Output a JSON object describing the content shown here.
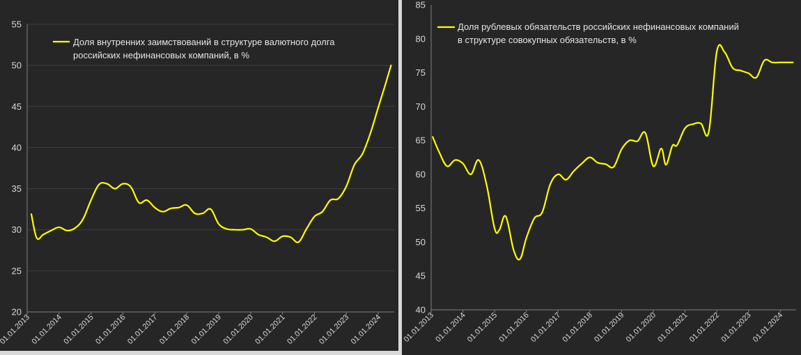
{
  "colors": {
    "background": "#262626",
    "line": "#ffff00",
    "text": "#d9d9d9",
    "grid": "#3f3f3f"
  },
  "chart_data": [
    {
      "type": "line",
      "legend": {
        "line1": "Доля внутренних заимствований в структуре валютного долга",
        "line2": "российских нефинансовых компаний, в %",
        "placement": "top"
      },
      "ylim": [
        20,
        55
      ],
      "yticks": [
        20,
        25,
        30,
        35,
        40,
        45,
        50,
        55
      ],
      "xlim": [
        2013.0,
        2024.5
      ],
      "xticks": [
        "01.01.2013",
        "01.01.2014",
        "01.01.2015",
        "01.01.2016",
        "01.01.2017",
        "01.01.2018",
        "01.01.2019",
        "01.01.2020",
        "01.01.2021",
        "01.01.2022",
        "01.01.2023",
        "01.01.2024"
      ],
      "grid": true,
      "series": [
        {
          "x": [
            2013.13,
            2013.3,
            2013.5,
            2013.75,
            2014.0,
            2014.25,
            2014.5,
            2014.75,
            2015.0,
            2015.25,
            2015.5,
            2015.75,
            2016.0,
            2016.25,
            2016.5,
            2016.75,
            2017.0,
            2017.25,
            2017.5,
            2017.75,
            2018.0,
            2018.25,
            2018.5,
            2018.75,
            2019.0,
            2019.25,
            2019.5,
            2019.75,
            2020.0,
            2020.25,
            2020.5,
            2020.75,
            2021.0,
            2021.25,
            2021.5,
            2021.75,
            2022.0,
            2022.25,
            2022.5,
            2022.75,
            2023.0,
            2023.25,
            2023.5,
            2023.75,
            2024.0,
            2024.2,
            2024.4
          ],
          "values": [
            31.9,
            29.0,
            29.4,
            29.9,
            30.3,
            29.9,
            30.2,
            31.3,
            33.6,
            35.5,
            35.6,
            35.0,
            35.6,
            35.2,
            33.3,
            33.6,
            32.7,
            32.2,
            32.6,
            32.7,
            33.0,
            32.0,
            32.0,
            32.5,
            30.7,
            30.1,
            30.0,
            30.0,
            30.1,
            29.4,
            29.1,
            28.6,
            29.2,
            29.1,
            28.5,
            30.1,
            31.6,
            32.2,
            33.6,
            33.8,
            35.3,
            37.9,
            39.2,
            41.7,
            44.9,
            47.4,
            50.0
          ]
        }
      ]
    },
    {
      "type": "line",
      "legend": {
        "line1": "Доля рублевых обязательств российских нефинансовых компаний",
        "line2": "в структуре совокупных обязательств, в %",
        "placement": "top"
      },
      "ylim": [
        40,
        85
      ],
      "yticks": [
        40,
        45,
        50,
        55,
        60,
        65,
        70,
        75,
        80,
        85
      ],
      "xlim": [
        2013.0,
        2024.5
      ],
      "xticks": [
        "01.01.2013",
        "01.01.2014",
        "01.01.2015",
        "01.01.2016",
        "01.01.2017",
        "01.01.2018",
        "01.01.2019",
        "01.01.2020",
        "01.01.2021",
        "01.01.2022",
        "01.01.2023",
        "01.01.2024"
      ],
      "grid": false,
      "series": [
        {
          "x": [
            2013.05,
            2013.25,
            2013.5,
            2013.75,
            2014.0,
            2014.25,
            2014.5,
            2014.75,
            2015.0,
            2015.15,
            2015.35,
            2015.6,
            2015.8,
            2016.0,
            2016.25,
            2016.5,
            2016.75,
            2017.0,
            2017.25,
            2017.5,
            2017.75,
            2018.0,
            2018.25,
            2018.5,
            2018.75,
            2019.0,
            2019.25,
            2019.5,
            2019.75,
            2020.0,
            2020.25,
            2020.4,
            2020.6,
            2020.75,
            2021.0,
            2021.25,
            2021.5,
            2021.75,
            2022.0,
            2022.25,
            2022.5,
            2022.75,
            2023.0,
            2023.25,
            2023.5,
            2023.75,
            2024.0,
            2024.2,
            2024.4
          ],
          "values": [
            65.5,
            63.3,
            61.2,
            62.1,
            61.6,
            60.0,
            62.1,
            58.4,
            52.0,
            51.8,
            53.8,
            48.8,
            47.5,
            50.6,
            53.5,
            54.4,
            58.5,
            60.0,
            59.2,
            60.5,
            61.6,
            62.5,
            61.7,
            61.5,
            61.1,
            63.7,
            65.0,
            64.9,
            66.1,
            61.2,
            63.8,
            61.4,
            64.2,
            64.3,
            66.8,
            67.4,
            67.5,
            66.3,
            78.1,
            78.0,
            75.7,
            75.3,
            74.9,
            74.3,
            76.8,
            76.5,
            76.5,
            76.5,
            76.5
          ]
        }
      ]
    }
  ]
}
